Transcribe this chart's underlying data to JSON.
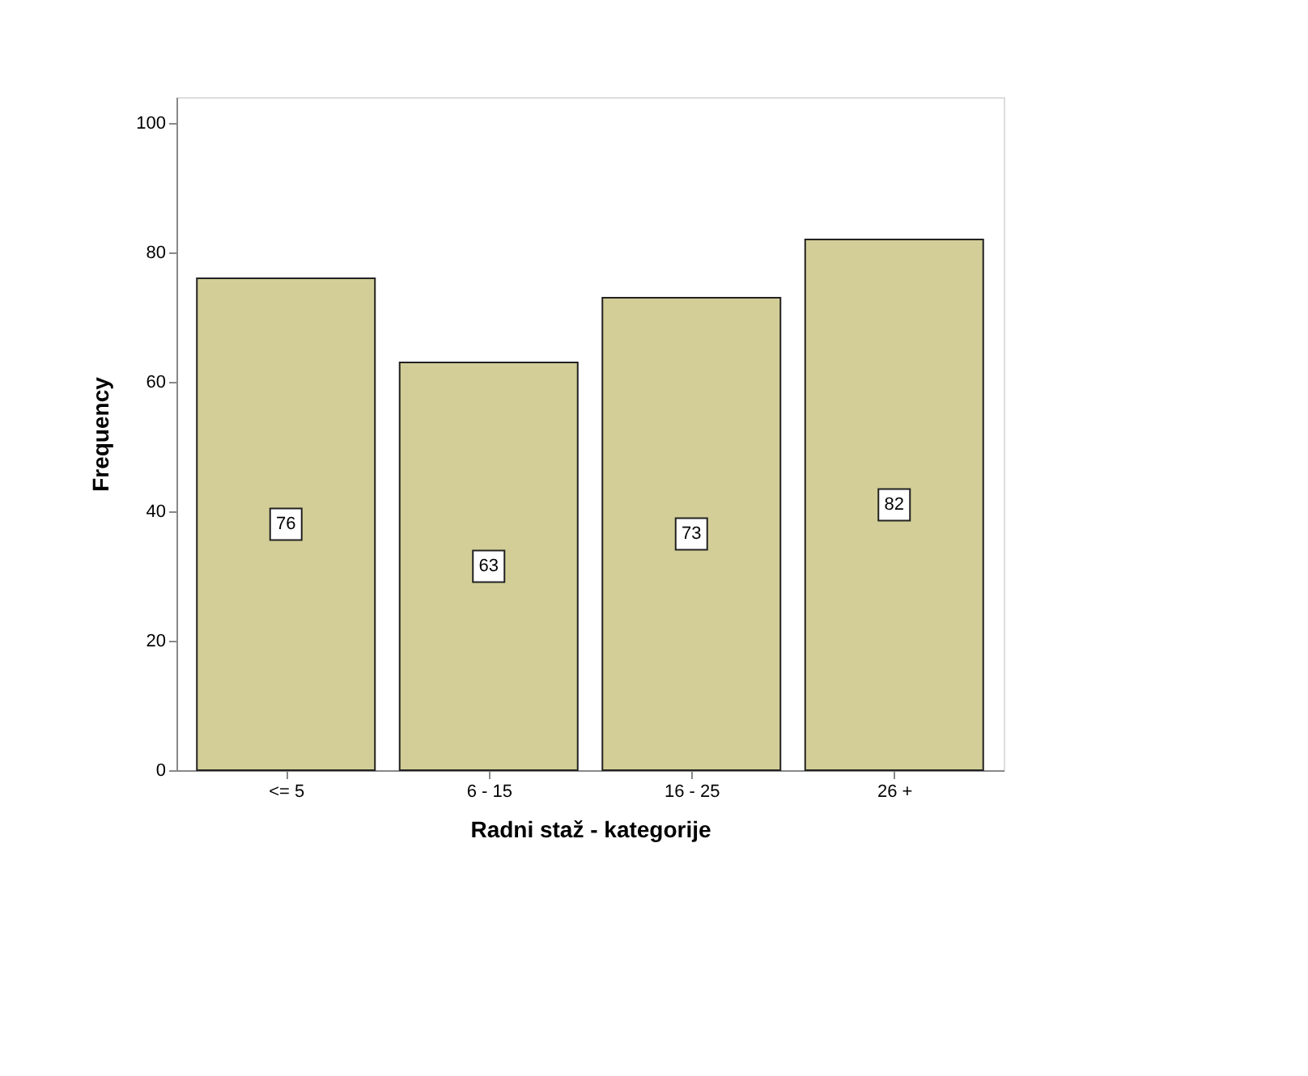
{
  "chart_data": {
    "type": "bar",
    "xlabel": "Radni staž - kategorije",
    "ylabel": "Frequency",
    "categories": [
      "<= 5",
      "6 - 15",
      "16 - 25",
      "26 +"
    ],
    "values": [
      76,
      63,
      73,
      82
    ],
    "color": "#d3ce97",
    "ylim": [
      0,
      104
    ],
    "yticks": [
      0,
      20,
      40,
      60,
      80,
      100
    ],
    "grid": false,
    "data_labels": true
  }
}
